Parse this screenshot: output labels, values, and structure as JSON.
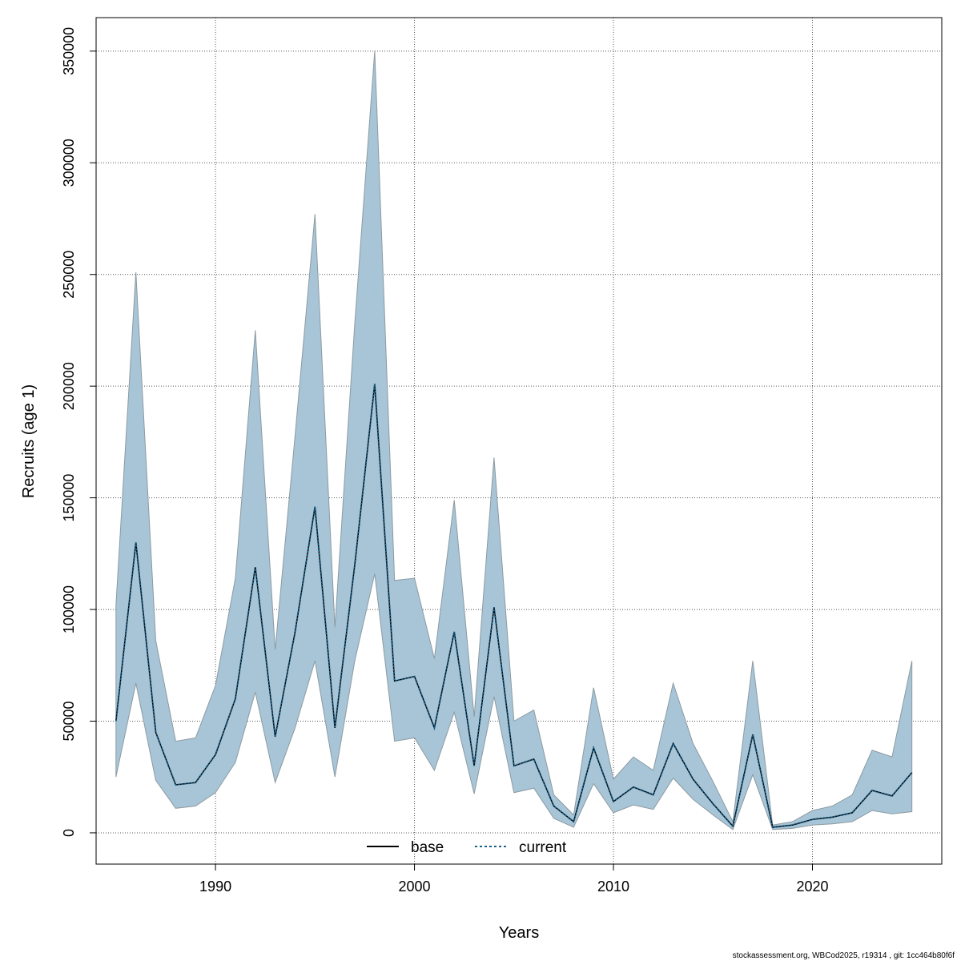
{
  "chart_data": {
    "type": "area",
    "xlabel": "Years",
    "ylabel": "Recruits (age 1)",
    "xlim": [
      1984,
      2026.5
    ],
    "ylim": [
      -14000,
      365000
    ],
    "xticks": [
      1990,
      2000,
      2010,
      2020
    ],
    "yticks": [
      0,
      50000,
      100000,
      150000,
      200000,
      250000,
      300000,
      350000
    ],
    "grid": true,
    "legend_position": "bottom-center",
    "band_color": "#a7c5d6",
    "band_edge_color": "#8c9aa2",
    "x": [
      1985,
      1986,
      1987,
      1988,
      1989,
      1990,
      1991,
      1992,
      1993,
      1994,
      1995,
      1996,
      1997,
      1998,
      1999,
      2000,
      2001,
      2002,
      2003,
      2004,
      2005,
      2006,
      2007,
      2008,
      2009,
      2010,
      2011,
      2012,
      2013,
      2014,
      2015,
      2016,
      2017,
      2018,
      2019,
      2020,
      2021,
      2022,
      2023,
      2024,
      2025
    ],
    "series": [
      {
        "name": "base",
        "line_style": "solid",
        "color": "#000000",
        "values": [
          50000,
          130000,
          45000,
          21500,
          22500,
          35000,
          60000,
          119000,
          43000,
          90000,
          146000,
          47000,
          120000,
          201000,
          68000,
          70000,
          47000,
          90000,
          30000,
          101000,
          30000,
          33000,
          12000,
          5000,
          38000,
          14000,
          20500,
          17000,
          40000,
          24000,
          13000,
          3000,
          44000,
          2500,
          3500,
          6000,
          7000,
          9000,
          19000,
          16500,
          27000
        ]
      },
      {
        "name": "current",
        "line_style": "dotted",
        "color": "#1a5f8a",
        "values": [
          50000,
          130000,
          45000,
          21500,
          22500,
          35000,
          60000,
          119000,
          43000,
          90000,
          146000,
          47000,
          120000,
          201000,
          68000,
          70000,
          47000,
          90000,
          30000,
          101000,
          30000,
          33000,
          12000,
          5000,
          38000,
          14000,
          20500,
          17000,
          40000,
          24000,
          13000,
          3000,
          44000,
          2500,
          3500,
          6000,
          7000,
          9000,
          19000,
          16500,
          27000
        ]
      }
    ],
    "upper": [
      102000,
      251000,
      86000,
      41000,
      42500,
      66000,
      114000,
      225000,
      82000,
      178000,
      277000,
      92000,
      228000,
      350000,
      113000,
      114000,
      78000,
      149000,
      52000,
      168000,
      50000,
      55000,
      17000,
      8000,
      65000,
      24000,
      34000,
      28000,
      67000,
      40000,
      23000,
      5000,
      77000,
      3500,
      5000,
      10000,
      12000,
      17000,
      37000,
      34000,
      77000
    ],
    "lower": [
      25000,
      67000,
      23500,
      11000,
      12000,
      18000,
      31500,
      63000,
      22500,
      47000,
      77000,
      25000,
      77000,
      116000,
      41000,
      42500,
      28000,
      54000,
      17500,
      61000,
      18000,
      20000,
      6500,
      2500,
      22000,
      9000,
      12500,
      10500,
      24500,
      15000,
      8000,
      1500,
      26000,
      1500,
      2000,
      3500,
      4000,
      5000,
      10000,
      8500,
      9500
    ]
  },
  "footnote": "stockassessment.org, WBCod2025, r19314 , git: 1cc464b80f6f"
}
